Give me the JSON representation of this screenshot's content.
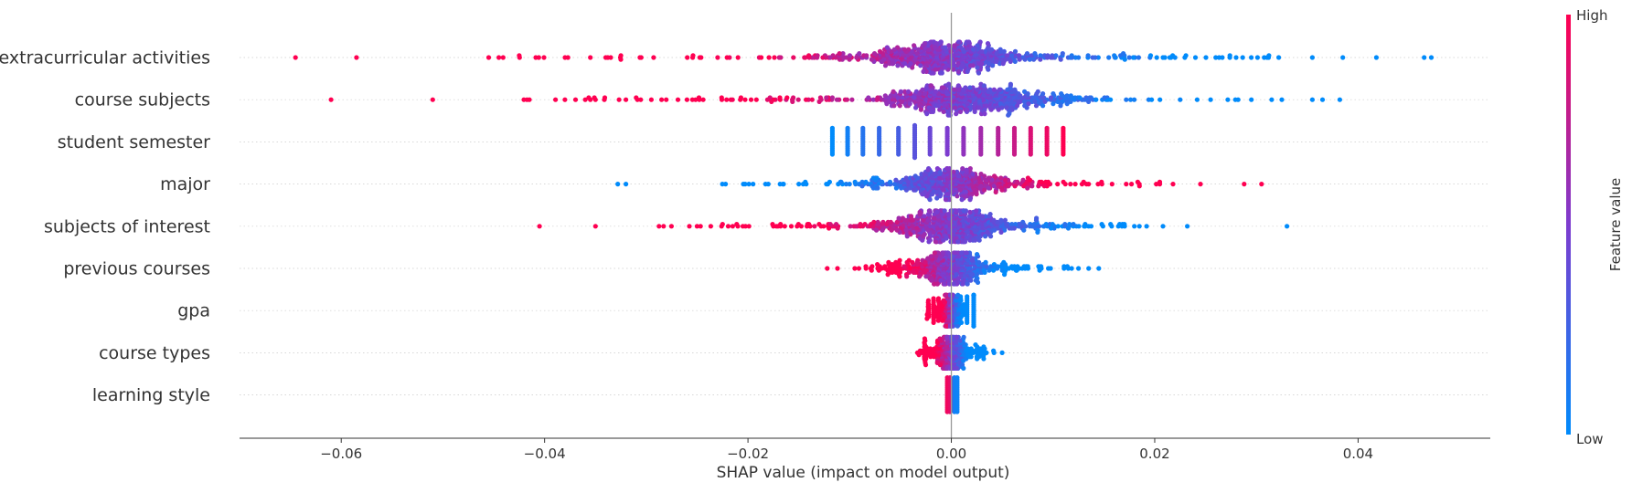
{
  "chart_data": {
    "type": "scatter",
    "subtype": "shap-beeswarm",
    "xlabel": "SHAP value (impact on model output)",
    "xlim": [
      -0.07,
      0.053
    ],
    "xticks": [
      -0.06,
      -0.04,
      -0.02,
      0.0,
      0.02,
      0.04
    ],
    "xtick_labels": [
      "−0.06",
      "−0.04",
      "−0.02",
      "0.00",
      "0.02",
      "0.04"
    ],
    "zero_line": 0.0,
    "grid": "dotted horizontal row guides",
    "colorbar": {
      "label": "Feature value",
      "high_label": "High",
      "low_label": "Low",
      "low_color": "#008bfb",
      "mid_color": "#7d3ccf",
      "high_color": "#ff0051"
    },
    "features": [
      {
        "name": "extracurricular activities",
        "min": -0.0645,
        "max": 0.0472,
        "core_half_width": 0.009,
        "center": -0.0005,
        "density": 1.0,
        "color_trend": "high_negative",
        "outliers": [
          -0.0645,
          -0.0585,
          -0.0455,
          -0.0445,
          -0.0425,
          -0.0355,
          -0.0335,
          -0.0325,
          -0.0305,
          0.021,
          0.022,
          0.024,
          0.026,
          0.028,
          0.0295,
          0.0312,
          0.0355,
          0.0385,
          0.0418,
          0.0465,
          0.0472
        ]
      },
      {
        "name": "course subjects",
        "min": -0.061,
        "max": 0.0382,
        "core_half_width": 0.01,
        "center": 0.0015,
        "density": 1.0,
        "color_trend": "high_negative",
        "outliers": [
          -0.061,
          -0.051,
          -0.0415,
          -0.038,
          -0.036,
          -0.0355,
          -0.035,
          -0.032,
          -0.031,
          -0.0295,
          -0.0285,
          -0.026,
          0.0225,
          0.0255,
          0.0282,
          0.0315,
          0.0325,
          0.0355,
          0.0365,
          0.0382
        ]
      },
      {
        "name": "student semester",
        "min": -0.0117,
        "max": 0.011,
        "discrete_positions": [
          -0.0117,
          -0.0102,
          -0.0087,
          -0.0071,
          -0.0052,
          -0.0036,
          -0.0021,
          -0.0004,
          0.0012,
          0.0029,
          0.0046,
          0.0062,
          0.0078,
          0.0094,
          0.011
        ],
        "color_trend": "high_positive"
      },
      {
        "name": "major",
        "min": -0.0328,
        "max": 0.0305,
        "core_half_width": 0.007,
        "center": 0.0,
        "density": 0.75,
        "color_trend": "high_positive",
        "outliers": [
          -0.0328,
          -0.032,
          -0.0222,
          -0.0195,
          -0.018,
          -0.0165,
          -0.015,
          0.0135,
          0.0158,
          0.0172,
          0.0185,
          0.0205,
          0.0218,
          0.0245,
          0.0288,
          0.0305
        ]
      },
      {
        "name": "subjects of interest",
        "min": -0.0405,
        "max": 0.033,
        "core_half_width": 0.007,
        "center": 0.0,
        "density": 0.95,
        "color_trend": "high_negative",
        "outliers": [
          -0.0405,
          -0.035,
          -0.0283,
          -0.0225,
          -0.0215,
          -0.0205,
          -0.0175,
          -0.0172,
          -0.0168,
          -0.0142,
          0.0105,
          0.012,
          0.0135,
          0.0148,
          0.0192,
          0.0232,
          0.033
        ]
      },
      {
        "name": "previous courses",
        "min": -0.0122,
        "max": 0.0145,
        "core_half_width": 0.005,
        "center": 0.0,
        "density": 0.7,
        "color_trend": "high_negative",
        "outliers": [
          -0.0122,
          -0.0112,
          -0.0095,
          0.0115,
          0.0125,
          0.0135,
          0.0145
        ]
      },
      {
        "name": "gpa",
        "min": -0.0025,
        "max": 0.0022,
        "core_half_width": 0.0022,
        "center": 0.0,
        "density": 0.35,
        "color_trend": "high_negative",
        "outliers": []
      },
      {
        "name": "course types",
        "min": -0.0038,
        "max": 0.005,
        "core_half_width": 0.0025,
        "center": 0.0,
        "density": 0.4,
        "color_trend": "high_negative",
        "outliers": [
          0.0042,
          0.005
        ]
      },
      {
        "name": "learning style",
        "min": -0.0007,
        "max": 0.0005,
        "split": [
          -0.0004,
          0.0003
        ],
        "color_trend": "high_negative"
      }
    ]
  }
}
